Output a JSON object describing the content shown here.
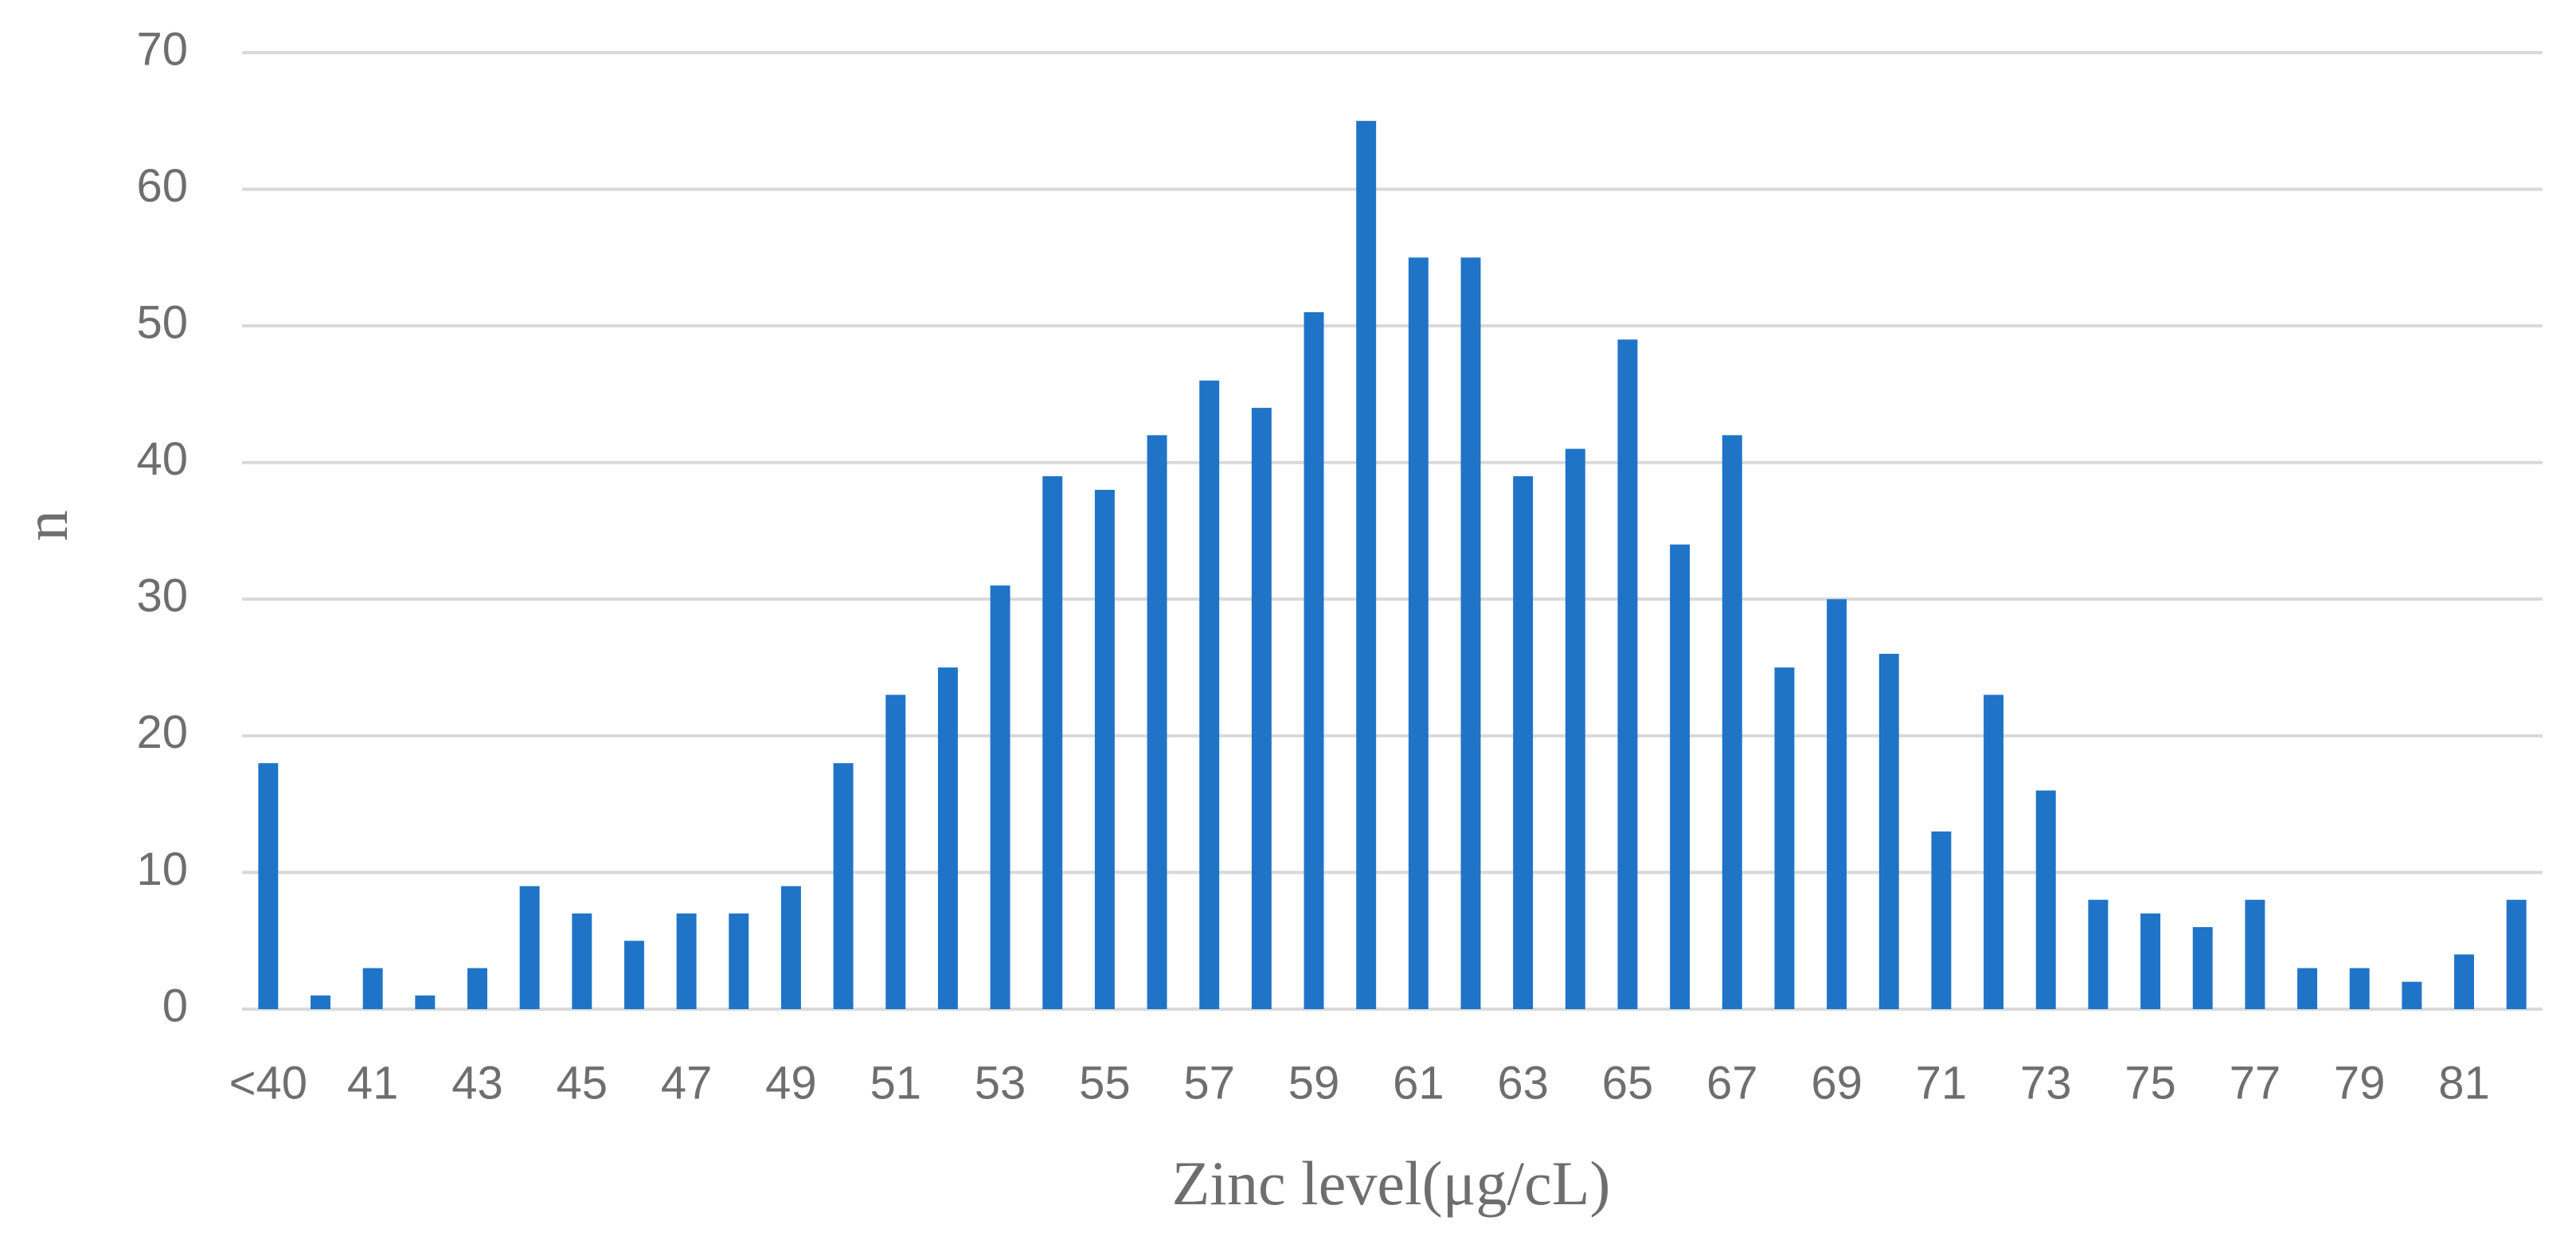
{
  "chart_data": {
    "type": "bar",
    "x_label": "Zinc level(μg/cL)",
    "y_label": "n",
    "categories": [
      "<40",
      null,
      "41",
      null,
      "43",
      null,
      "45",
      null,
      "47",
      null,
      "49",
      null,
      "51",
      null,
      "53",
      null,
      "55",
      null,
      "57",
      null,
      "59",
      null,
      "61",
      null,
      "63",
      null,
      "65",
      null,
      "67",
      null,
      "69",
      null,
      "71",
      null,
      "73",
      null,
      "75",
      null,
      "77",
      null,
      "79",
      null,
      "81",
      null
    ],
    "values": [
      18,
      1,
      3,
      1,
      3,
      9,
      7,
      5,
      7,
      7,
      9,
      18,
      23,
      25,
      31,
      39,
      38,
      42,
      46,
      44,
      51,
      65,
      55,
      55,
      39,
      41,
      49,
      34,
      42,
      25,
      30,
      26,
      13,
      23,
      16,
      8,
      7,
      6,
      8,
      3,
      3,
      2,
      4,
      8
    ],
    "color": "#1f74c8",
    "ylim": [
      0,
      70
    ],
    "yticks": [
      0,
      10,
      20,
      30,
      40,
      50,
      60,
      70
    ],
    "grid": true
  }
}
